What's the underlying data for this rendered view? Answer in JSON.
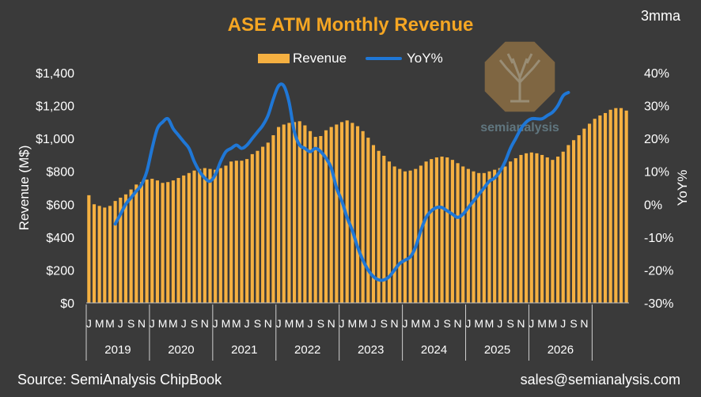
{
  "chart_data": {
    "type": "bar+line",
    "title": "ASE ATM Monthly Revenue",
    "subtitle": "3mma",
    "ylabel": "Revenue (M$)",
    "y2label": "YoY%",
    "ylim": [
      0,
      1400
    ],
    "y2lim": [
      -30,
      40
    ],
    "yticks": [
      "$0",
      "$200",
      "$400",
      "$600",
      "$800",
      "$1,000",
      "$1,200",
      "$1,400"
    ],
    "y2ticks": [
      "-30%",
      "-20%",
      "-10%",
      "0%",
      "10%",
      "20%",
      "30%",
      "40%"
    ],
    "month_labels": [
      "J",
      "M",
      "M",
      "J",
      "S",
      "N"
    ],
    "years": [
      "2019",
      "2020",
      "2021",
      "2022",
      "2023",
      "2024",
      "2025",
      "2026"
    ],
    "series": [
      {
        "name": "Revenue",
        "color": "#f5b041",
        "start": "2019-01",
        "values": [
          655,
          600,
          590,
          580,
          590,
          620,
          640,
          660,
          690,
          720,
          735,
          750,
          755,
          745,
          730,
          735,
          745,
          760,
          775,
          790,
          805,
          815,
          820,
          815,
          810,
          820,
          835,
          860,
          865,
          865,
          875,
          905,
          925,
          950,
          975,
          1020,
          1070,
          1085,
          1095,
          1100,
          1105,
          1080,
          1045,
          1010,
          1015,
          1050,
          1070,
          1085,
          1100,
          1110,
          1095,
          1075,
          1045,
          1005,
          960,
          925,
          895,
          860,
          830,
          815,
          800,
          805,
          815,
          835,
          860,
          875,
          885,
          890,
          885,
          870,
          850,
          830,
          815,
          800,
          790,
          790,
          800,
          810,
          820,
          830,
          860,
          880,
          900,
          910,
          915,
          910,
          900,
          885,
          870,
          890,
          920,
          960,
          990,
          1020,
          1060,
          1090,
          1120,
          1140,
          1155,
          1175,
          1185,
          1185,
          1170
        ]
      },
      {
        "name": "YoY%",
        "color": "#1f77d6",
        "start": "2019-06",
        "values": [
          -6,
          -3,
          0,
          2,
          4,
          6,
          10,
          17,
          23,
          25,
          26,
          23,
          21,
          19,
          17,
          13,
          10,
          8,
          7,
          9,
          13,
          16,
          17,
          18,
          17,
          18,
          20,
          22,
          24,
          27,
          32,
          36,
          36,
          31,
          22,
          18,
          17,
          16,
          17,
          16,
          14,
          11,
          5,
          1,
          -4,
          -8,
          -13,
          -17,
          -20,
          -22,
          -23,
          -23,
          -22,
          -20,
          -18,
          -17,
          -16,
          -13,
          -8,
          -4,
          -2,
          -1,
          -1,
          -2,
          -3,
          -4,
          -3,
          -1,
          1,
          3,
          5,
          7,
          8,
          10,
          13,
          17,
          20,
          23,
          25,
          26,
          26,
          26,
          27,
          28,
          30,
          33,
          34
        ]
      }
    ]
  },
  "footer": {
    "source": "Source: SemiAnalysis ChipBook",
    "contact": "sales@semianalysis.com"
  },
  "watermark": {
    "text": "semianalysis"
  },
  "colors": {
    "background": "#3a3a3a",
    "title": "#f5a623",
    "text": "#ffffff",
    "bar": "#f5b041",
    "line": "#1f77d6",
    "watermark_fill": "#b88a4a"
  }
}
